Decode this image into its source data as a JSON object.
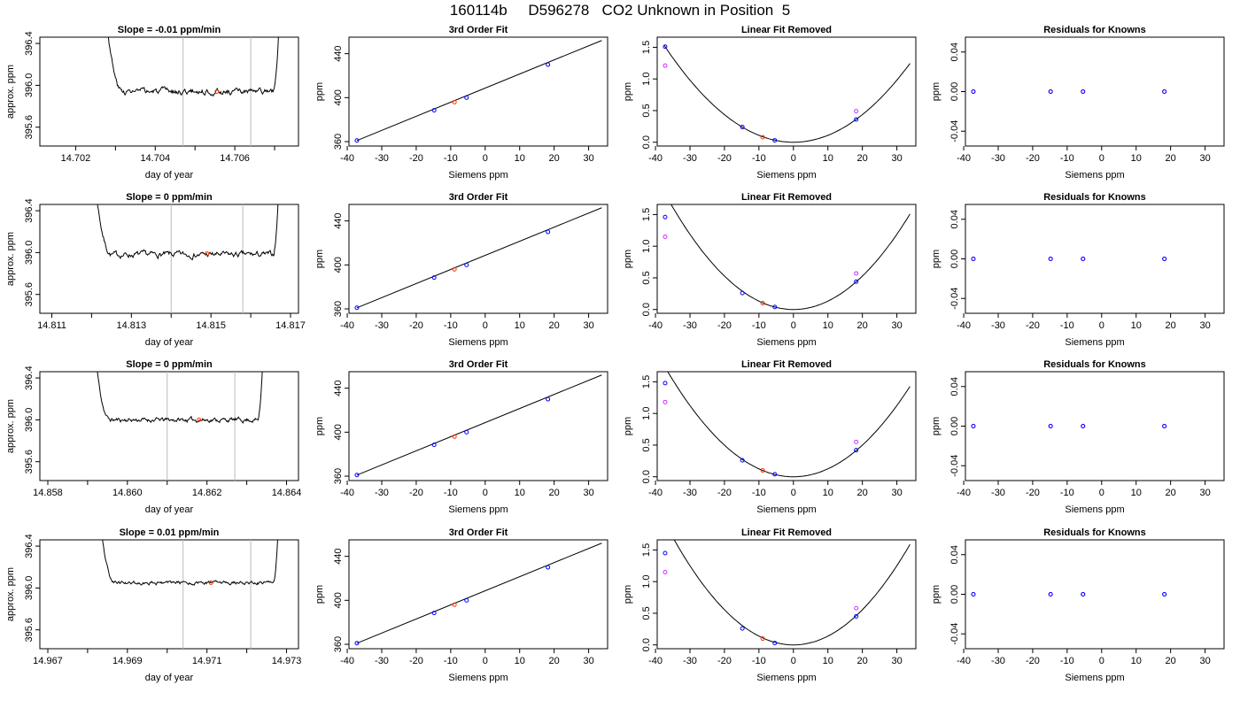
{
  "title": "160114b     D596278   CO2 Unknown in Position  5",
  "chart_data": {
    "colors": {
      "line": "#000000",
      "known": "#0000ff",
      "unknown": "#ff3300",
      "raw": "#cc33ff",
      "window": "#bbbbbb"
    },
    "rows": [
      {
        "timeseries": {
          "type": "line",
          "title": "Slope =  -0.01  ppm/min",
          "xlabel": "day of year",
          "ylabel": "approx. ppm",
          "xlim": [
            14.7011,
            14.7076
          ],
          "ylim": [
            395.42,
            396.46
          ],
          "xticks": [
            14.702,
            14.704,
            14.706
          ],
          "xtick_labels": [
            "14.702",
            "14.704",
            "14.706"
          ],
          "xminor": [
            14.703,
            14.705,
            14.707
          ],
          "yticks": [
            395.6,
            396.0,
            396.4
          ],
          "ytick_labels": [
            "395.6",
            "396.0",
            "396.4"
          ],
          "window": [
            14.7047,
            14.7064
          ],
          "trace_start": 14.70265,
          "trace_end": 14.70715,
          "plateau": 395.94,
          "noise": 0.02,
          "seed": 3,
          "marker": {
            "x": 14.70555,
            "y": 395.94
          }
        },
        "fit": {
          "type": "scatter",
          "title": "3rd Order Fit",
          "xlabel": "Siemens ppm",
          "ylabel": "ppm",
          "xlim": [
            -39.5,
            35.5
          ],
          "ylim": [
            356,
            455
          ],
          "line_x": [
            -37.2,
            33.8
          ],
          "line_y": [
            361,
            452
          ],
          "knowns": [
            {
              "x": -37.2,
              "y": 361
            },
            {
              "x": -14.8,
              "y": 388.5
            },
            {
              "x": -5.4,
              "y": 400
            },
            {
              "x": 18.2,
              "y": 430
            }
          ],
          "unknown": {
            "x": -8.9,
            "y": 395.9
          }
        },
        "residfit": {
          "type": "scatter",
          "title": "Linear Fit Removed",
          "xlabel": "Siemens ppm",
          "ylabel": "ppm",
          "xlim": [
            -39.5,
            35.5
          ],
          "ylim": [
            -0.06,
            1.66
          ],
          "curve_coef": 0.00109,
          "curve_x": [
            -37.5,
            33.8
          ],
          "knowns": [
            {
              "x": -37.2,
              "y": 1.51
            },
            {
              "x": -14.8,
              "y": 0.24
            },
            {
              "x": -5.4,
              "y": 0.03
            },
            {
              "x": 18.2,
              "y": 0.36
            }
          ],
          "raw": [
            {
              "x": -37.2,
              "y": 1.21
            },
            {
              "x": 18.2,
              "y": 0.49
            }
          ],
          "unknown": {
            "x": -8.9,
            "y": 0.08
          }
        },
        "knownresid": {
          "type": "scatter",
          "title": "Residuals for Knowns",
          "xlabel": "Siemens ppm",
          "ylabel": "ppm",
          "xlim": [
            -39.5,
            35.5
          ],
          "ylim": [
            -0.055,
            0.055
          ],
          "points": [
            {
              "x": -37.2,
              "y": 0
            },
            {
              "x": -14.8,
              "y": 0
            },
            {
              "x": -5.4,
              "y": 0
            },
            {
              "x": 18.2,
              "y": 0
            }
          ]
        }
      },
      {
        "timeseries": {
          "type": "line",
          "title": "Slope =  0  ppm/min",
          "xlabel": "day of year",
          "ylabel": "approx. ppm",
          "xlim": [
            14.8107,
            14.8172
          ],
          "ylim": [
            395.42,
            396.46
          ],
          "xticks": [
            14.811,
            14.813,
            14.815,
            14.817
          ],
          "xtick_labels": [
            "14.811",
            "14.813",
            "14.815",
            "14.817"
          ],
          "xminor": [
            14.812,
            14.814,
            14.816
          ],
          "yticks": [
            395.6,
            396.0,
            396.4
          ],
          "ytick_labels": [
            "395.6",
            "396.0",
            "396.4"
          ],
          "window": [
            14.814,
            14.8158
          ],
          "trace_start": 14.81195,
          "trace_end": 14.81675,
          "plateau": 395.98,
          "noise": 0.02,
          "seed": 7,
          "marker": {
            "x": 14.8149,
            "y": 395.99
          }
        },
        "fit": {
          "type": "scatter",
          "title": "3rd Order Fit",
          "xlabel": "Siemens ppm",
          "ylabel": "ppm",
          "xlim": [
            -39.5,
            35.5
          ],
          "ylim": [
            356,
            455
          ],
          "line_x": [
            -37.2,
            33.8
          ],
          "line_y": [
            361,
            452
          ],
          "knowns": [
            {
              "x": -37.2,
              "y": 361
            },
            {
              "x": -14.8,
              "y": 388.5
            },
            {
              "x": -5.4,
              "y": 400
            },
            {
              "x": 18.2,
              "y": 430
            }
          ],
          "unknown": {
            "x": -8.9,
            "y": 396
          }
        },
        "residfit": {
          "type": "scatter",
          "title": "Linear Fit Removed",
          "xlabel": "Siemens ppm",
          "ylabel": "ppm",
          "xlim": [
            -39.5,
            35.5
          ],
          "ylim": [
            -0.06,
            1.66
          ],
          "curve_coef": 0.00132,
          "curve_x": [
            -37.5,
            33.8
          ],
          "knowns": [
            {
              "x": -37.2,
              "y": 1.46
            },
            {
              "x": -14.8,
              "y": 0.26
            },
            {
              "x": -5.4,
              "y": 0.04
            },
            {
              "x": 18.2,
              "y": 0.44
            }
          ],
          "raw": [
            {
              "x": -37.2,
              "y": 1.15
            },
            {
              "x": 18.2,
              "y": 0.57
            }
          ],
          "unknown": {
            "x": -8.9,
            "y": 0.1
          }
        },
        "knownresid": {
          "type": "scatter",
          "title": "Residuals for Knowns",
          "xlabel": "Siemens ppm",
          "ylabel": "ppm",
          "xlim": [
            -39.5,
            35.5
          ],
          "ylim": [
            -0.055,
            0.055
          ],
          "points": [
            {
              "x": -37.2,
              "y": 0
            },
            {
              "x": -14.8,
              "y": 0
            },
            {
              "x": -5.4,
              "y": 0
            },
            {
              "x": 18.2,
              "y": 0
            }
          ]
        }
      },
      {
        "timeseries": {
          "type": "line",
          "title": "Slope =  0  ppm/min",
          "xlabel": "day of year",
          "ylabel": "approx. ppm",
          "xlim": [
            14.8578,
            14.8643
          ],
          "ylim": [
            395.42,
            396.46
          ],
          "xticks": [
            14.858,
            14.86,
            14.862,
            14.864
          ],
          "xtick_labels": [
            "14.858",
            "14.860",
            "14.862",
            "14.864"
          ],
          "xminor": [
            14.859,
            14.861,
            14.863
          ],
          "yticks": [
            395.6,
            396.0,
            396.4
          ],
          "ytick_labels": [
            "395.6",
            "396.0",
            "396.4"
          ],
          "window": [
            14.861,
            14.8627
          ],
          "trace_start": 14.85905,
          "trace_end": 14.86345,
          "plateau": 396.0,
          "noise": 0.015,
          "seed": 11,
          "marker": {
            "x": 14.8618,
            "y": 396.0
          }
        },
        "fit": {
          "type": "scatter",
          "title": "3rd Order Fit",
          "xlabel": "Siemens ppm",
          "ylabel": "ppm",
          "xlim": [
            -39.5,
            35.5
          ],
          "ylim": [
            356,
            455
          ],
          "line_x": [
            -37.2,
            33.8
          ],
          "line_y": [
            361,
            452
          ],
          "knowns": [
            {
              "x": -37.2,
              "y": 361
            },
            {
              "x": -14.8,
              "y": 388.5
            },
            {
              "x": -5.4,
              "y": 400
            },
            {
              "x": 18.2,
              "y": 430
            }
          ],
          "unknown": {
            "x": -8.9,
            "y": 396
          }
        },
        "residfit": {
          "type": "scatter",
          "title": "Linear Fit Removed",
          "xlabel": "Siemens ppm",
          "ylabel": "ppm",
          "xlim": [
            -39.5,
            35.5
          ],
          "ylim": [
            -0.06,
            1.66
          ],
          "curve_coef": 0.00125,
          "curve_x": [
            -37.5,
            33.8
          ],
          "knowns": [
            {
              "x": -37.2,
              "y": 1.48
            },
            {
              "x": -14.8,
              "y": 0.26
            },
            {
              "x": -5.4,
              "y": 0.04
            },
            {
              "x": 18.2,
              "y": 0.42
            }
          ],
          "raw": [
            {
              "x": -37.2,
              "y": 1.18
            },
            {
              "x": 18.2,
              "y": 0.55
            }
          ],
          "unknown": {
            "x": -8.9,
            "y": 0.1
          }
        },
        "knownresid": {
          "type": "scatter",
          "title": "Residuals for Knowns",
          "xlabel": "Siemens ppm",
          "ylabel": "ppm",
          "xlim": [
            -39.5,
            35.5
          ],
          "ylim": [
            -0.055,
            0.055
          ],
          "points": [
            {
              "x": -37.2,
              "y": 0
            },
            {
              "x": -14.8,
              "y": 0
            },
            {
              "x": -5.4,
              "y": 0
            },
            {
              "x": 18.2,
              "y": 0
            }
          ]
        }
      },
      {
        "timeseries": {
          "type": "line",
          "title": "Slope =  0.01  ppm/min",
          "xlabel": "day of year",
          "ylabel": "approx. ppm",
          "xlim": [
            14.9668,
            14.9733
          ],
          "ylim": [
            395.42,
            396.46
          ],
          "xticks": [
            14.967,
            14.969,
            14.971,
            14.973
          ],
          "xtick_labels": [
            "14.967",
            "14.969",
            "14.971",
            "14.973"
          ],
          "xminor": [
            14.968,
            14.97,
            14.972
          ],
          "yticks": [
            395.6,
            396.0,
            396.4
          ],
          "ytick_labels": [
            "395.6",
            "396.0",
            "396.4"
          ],
          "window": [
            14.9704,
            14.9721
          ],
          "trace_start": 14.96815,
          "trace_end": 14.97285,
          "plateau": 396.05,
          "noise": 0.012,
          "seed": 19,
          "marker": {
            "x": 14.9711,
            "y": 396.05
          }
        },
        "fit": {
          "type": "scatter",
          "title": "3rd Order Fit",
          "xlabel": "Siemens ppm",
          "ylabel": "ppm",
          "xlim": [
            -39.5,
            35.5
          ],
          "ylim": [
            356,
            455
          ],
          "line_x": [
            -37.2,
            33.8
          ],
          "line_y": [
            361,
            452
          ],
          "knowns": [
            {
              "x": -37.2,
              "y": 361
            },
            {
              "x": -14.8,
              "y": 388.5
            },
            {
              "x": -5.4,
              "y": 400
            },
            {
              "x": 18.2,
              "y": 430
            }
          ],
          "unknown": {
            "x": -8.9,
            "y": 396
          }
        },
        "residfit": {
          "type": "scatter",
          "title": "Linear Fit Removed",
          "xlabel": "Siemens ppm",
          "ylabel": "ppm",
          "xlim": [
            -39.5,
            35.5
          ],
          "ylim": [
            -0.06,
            1.66
          ],
          "curve_coef": 0.00139,
          "curve_x": [
            -37.5,
            33.8
          ],
          "knowns": [
            {
              "x": -37.2,
              "y": 1.45
            },
            {
              "x": -14.8,
              "y": 0.26
            },
            {
              "x": -5.4,
              "y": 0.03
            },
            {
              "x": 18.2,
              "y": 0.45
            }
          ],
          "raw": [
            {
              "x": -37.2,
              "y": 1.15
            },
            {
              "x": 18.2,
              "y": 0.58
            }
          ],
          "unknown": {
            "x": -8.9,
            "y": 0.1
          }
        },
        "knownresid": {
          "type": "scatter",
          "title": "Residuals for Knowns",
          "xlabel": "Siemens ppm",
          "ylabel": "ppm",
          "xlim": [
            -39.5,
            35.5
          ],
          "ylim": [
            -0.055,
            0.055
          ],
          "points": [
            {
              "x": -37.2,
              "y": 0
            },
            {
              "x": -14.8,
              "y": 0
            },
            {
              "x": -5.4,
              "y": 0
            },
            {
              "x": 18.2,
              "y": 0
            }
          ]
        }
      }
    ],
    "siemens_axis": {
      "xticks": [
        -40,
        -30,
        -20,
        -10,
        0,
        10,
        20,
        30
      ],
      "xtick_labels": [
        "-40",
        "-30",
        "-20",
        "-10",
        "0",
        "10",
        "20",
        "30"
      ],
      "fit_yticks": [
        360,
        400,
        440
      ],
      "fit_ytick_labels": [
        "360",
        "400",
        "440"
      ],
      "resid_yticks": [
        0.0,
        0.5,
        1.0,
        1.5
      ],
      "resid_ytick_labels": [
        "0.0",
        "0.5",
        "1.0",
        "1.5"
      ],
      "known_yticks": [
        -0.04,
        0.0,
        0.04
      ],
      "known_ytick_labels": [
        "-0.04",
        "0.00",
        "0.04"
      ]
    }
  }
}
